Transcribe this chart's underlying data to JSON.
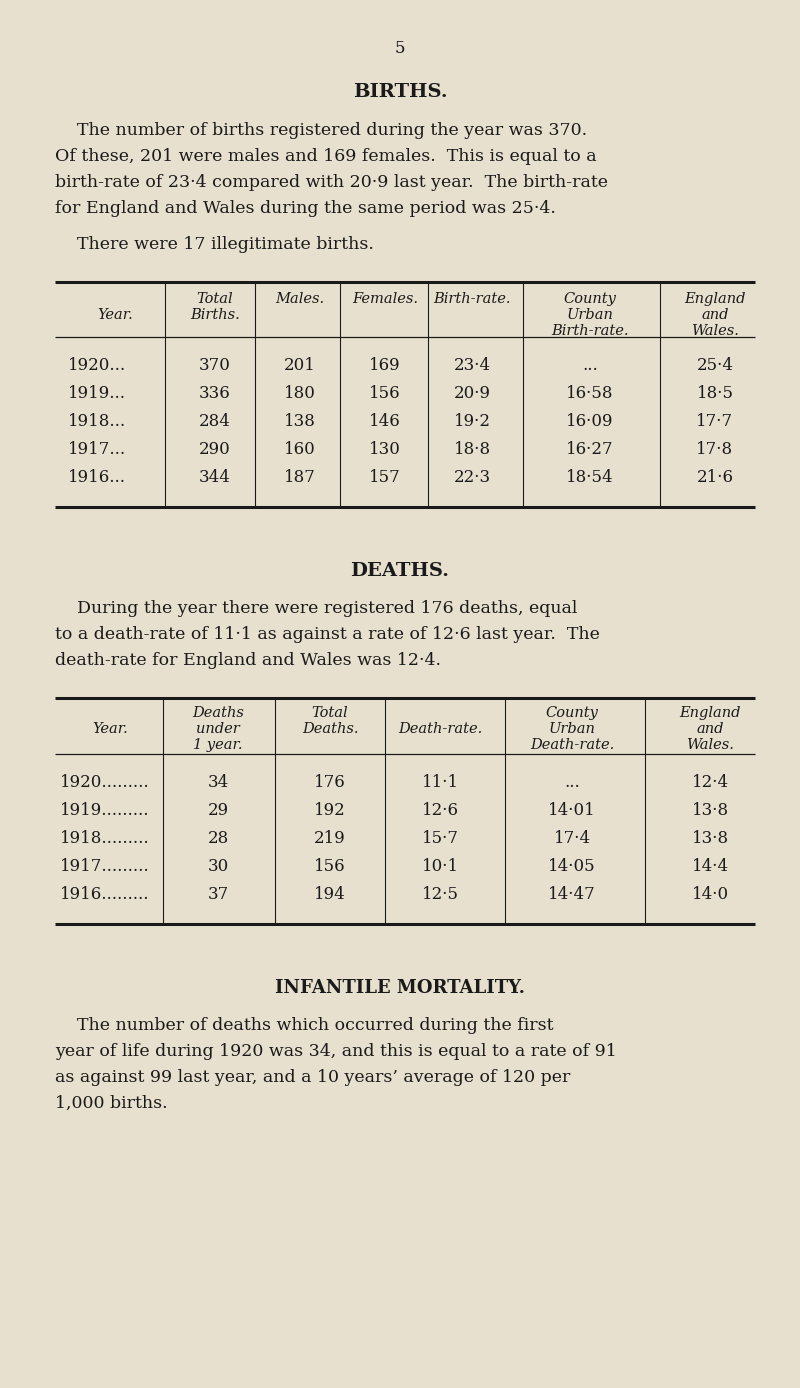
{
  "bg_color": "#e8e0ce",
  "text_color": "#1a1a1a",
  "page_number": "5",
  "section1_title": "BIRTHS.",
  "section1_para1_lines": [
    "    The number of births registered during the year was 370.",
    "Of these, 201 were males and 169 females.  This is equal to a",
    "birth-rate of 23·4 compared with 20·9 last year.  The birth-rate",
    "for England and Wales during the same period was 25·4."
  ],
  "section1_para2": "    There were 17 illegitimate births.",
  "births_headers_row1": [
    "",
    "Total",
    "Males.",
    "Females.",
    "Birth-rate.",
    "County",
    "England"
  ],
  "births_headers_row2": [
    "Year.",
    "Births.",
    "",
    "",
    "",
    "Urban",
    "and"
  ],
  "births_headers_row3": [
    "",
    "",
    "",
    "",
    "",
    "Birth-rate.",
    "Wales."
  ],
  "births_rows": [
    [
      "1920...",
      "370",
      "201",
      "169",
      "23·4",
      "...",
      "25·4"
    ],
    [
      "1919...",
      "336",
      "180",
      "156",
      "20·9",
      "16·58",
      "18·5"
    ],
    [
      "1918...",
      "284",
      "138",
      "146",
      "19·2",
      "16·09",
      "17·7"
    ],
    [
      "1917...",
      "290",
      "160",
      "130",
      "18·8",
      "16·27",
      "17·8"
    ],
    [
      "1916...",
      "344",
      "187",
      "157",
      "22·3",
      "18·54",
      "21·6"
    ]
  ],
  "section2_title": "DEATHS.",
  "section2_para1_lines": [
    "    During the year there were registered 176 deaths, equal",
    "to a death-rate of 11·1 as against a rate of 12·6 last year.  The",
    "death-rate for England and Wales was 12·4."
  ],
  "deaths_headers_row1": [
    "",
    "Deaths",
    "Total",
    "",
    "County",
    "England"
  ],
  "deaths_headers_row2": [
    "Year.",
    "under",
    "Deaths.",
    "Death-rate.",
    "Urban",
    "and"
  ],
  "deaths_headers_row3": [
    "",
    "1 year.",
    "",
    "",
    "Death-rate.",
    "Wales."
  ],
  "deaths_rows": [
    [
      "1920.........",
      "34",
      "176",
      "11·1",
      "...",
      "12·4"
    ],
    [
      "1919.........",
      "29",
      "192",
      "12·6",
      "14·01",
      "13·8"
    ],
    [
      "1918.........",
      "28",
      "219",
      "15·7",
      "17·4",
      "13·8"
    ],
    [
      "1917.........",
      "30",
      "156",
      "10·1",
      "14·05",
      "14·4"
    ],
    [
      "1916.........",
      "37",
      "194",
      "12·5",
      "14·47",
      "14·0"
    ]
  ],
  "section3_title": "INFANTILE MORTALITY.",
  "section3_para1_lines": [
    "    The number of deaths which occurred during the first",
    "year of life during 1920 was 34, and this is equal to a rate of 91",
    "as against 99 last year, and a 10 years’ average of 120 per",
    "1,000 births."
  ]
}
